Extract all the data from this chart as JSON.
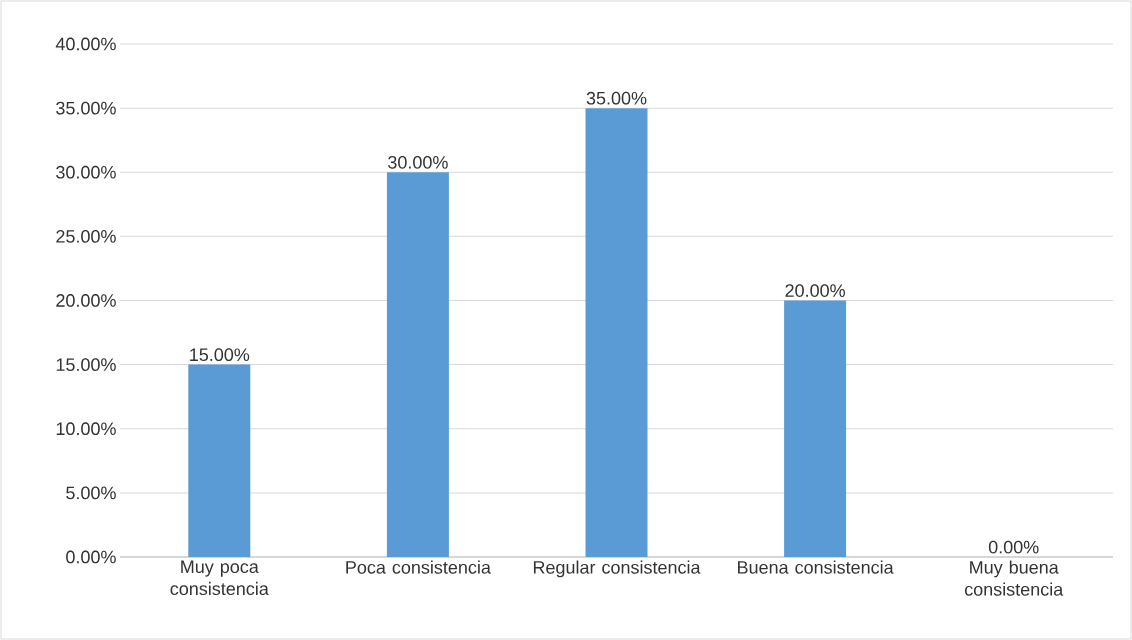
{
  "chart_data": {
    "type": "bar",
    "categories": [
      "Muy poca consistencia",
      "Poca consistencia",
      "Regular consistencia",
      "Buena consistencia",
      "Muy buena consistencia"
    ],
    "values": [
      15,
      30,
      35,
      20,
      0
    ],
    "value_labels": [
      "15.00%",
      "30.00%",
      "35.00%",
      "20.00%",
      "0.00%"
    ],
    "color": "#5b9bd5",
    "ylim": [
      0,
      40
    ],
    "yticks": [
      {
        "value": 0,
        "label": "0.00%"
      },
      {
        "value": 5,
        "label": "5.00%"
      },
      {
        "value": 10,
        "label": "10.00%"
      },
      {
        "value": 15,
        "label": "15.00%"
      },
      {
        "value": 20,
        "label": "20.00%"
      },
      {
        "value": 25,
        "label": "25.00%"
      },
      {
        "value": 30,
        "label": "30.00%"
      },
      {
        "value": 35,
        "label": "35.00%"
      },
      {
        "value": 40,
        "label": "40.00%"
      }
    ],
    "grid": "y"
  }
}
